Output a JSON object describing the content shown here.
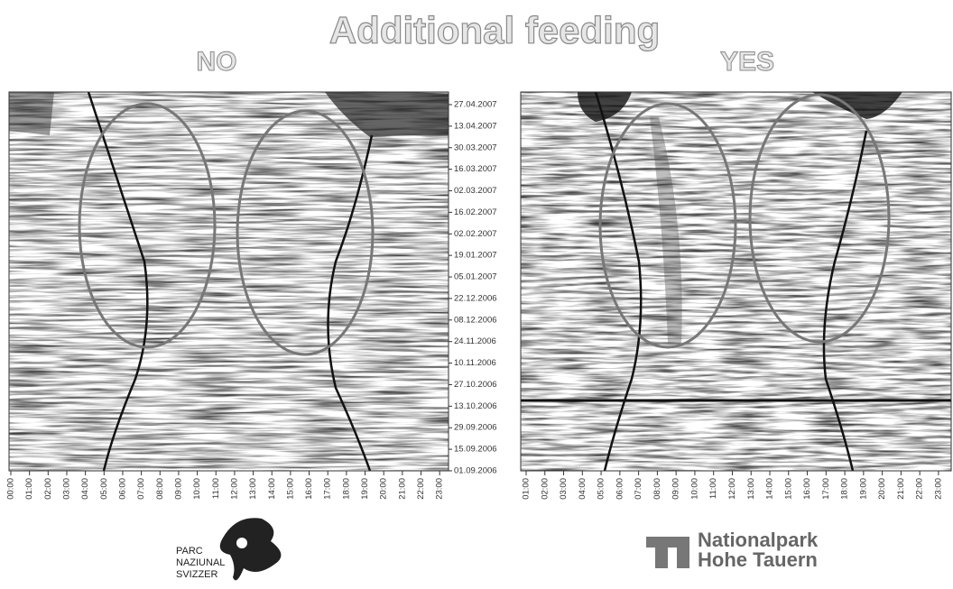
{
  "title": "Additional feeding",
  "panels": [
    {
      "label": "NO",
      "x_ticks": [
        "00:00",
        "01:00",
        "02:00",
        "03:00",
        "04:00",
        "05:00",
        "06:00",
        "07:00",
        "08:00",
        "09:00",
        "10:00",
        "11:00",
        "12:00",
        "13:00",
        "14:00",
        "15:00",
        "16:00",
        "17:00",
        "18:00",
        "19:00",
        "20:00",
        "21:00",
        "22:00",
        "23:00"
      ],
      "y_ticks": [
        "27.04.2007",
        "13.04.2007",
        "30.03.2007",
        "16.03.2007",
        "02.03.2007",
        "16.02.2007",
        "02.02.2007",
        "19.01.2007",
        "05.01.2007",
        "22.12.2006",
        "08.12.2006",
        "24.11.2006",
        "10.11.2006",
        "27.10.2006",
        "13.10.2006",
        "29.09.2006",
        "15.09.2006",
        "01.09.2006"
      ]
    },
    {
      "label": "YES",
      "x_ticks": [
        "01:00",
        "02:00",
        "03:00",
        "04:00",
        "05:00",
        "06:00",
        "07:00",
        "08:00",
        "09:00",
        "10:00",
        "11:00",
        "12:00",
        "13:00",
        "14:00",
        "15:00",
        "16:00",
        "17:00",
        "18:00",
        "19:00",
        "20:00",
        "21:00",
        "22:00",
        "23:00"
      ]
    }
  ],
  "logos": {
    "left": [
      "PARC",
      "NAZIUNAL",
      "SVIZZER"
    ],
    "right": [
      "Nationalpark",
      "Hohe Tauern"
    ]
  }
}
